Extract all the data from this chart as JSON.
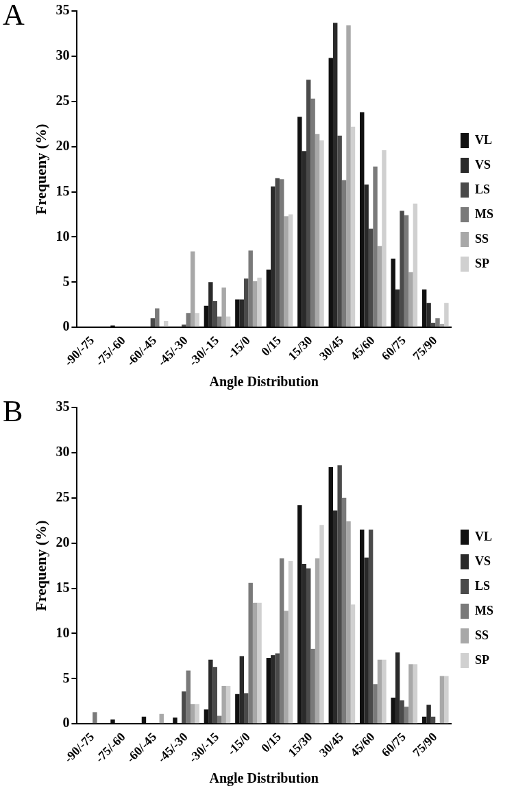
{
  "chart_data": [
    {
      "type": "bar",
      "annotations": [
        "A"
      ],
      "xlabel": "Angle Distribution",
      "ylabel": "Frequeny (%)",
      "categories": [
        "-90/-75",
        "-75/-60",
        "-60/-45",
        "-45/-30",
        "-30/-15",
        "-15/0",
        "0/15",
        "15/30",
        "30/45",
        "45/60",
        "60/75",
        "75/90"
      ],
      "series": [
        {
          "name": "VL",
          "color": "#111111",
          "values": [
            0,
            0.2,
            0,
            0,
            2.4,
            3.1,
            6.4,
            23.3,
            29.8,
            23.8,
            7.6,
            4.2
          ]
        },
        {
          "name": "VS",
          "color": "#2a2a2a",
          "values": [
            0,
            0,
            0,
            0,
            5.0,
            3.1,
            15.6,
            19.5,
            33.7,
            15.8,
            4.2,
            2.7
          ]
        },
        {
          "name": "LS",
          "color": "#4a4a4a",
          "values": [
            0,
            0,
            1.0,
            0.3,
            2.9,
            5.4,
            16.5,
            27.4,
            21.2,
            10.9,
            12.9,
            0.5
          ]
        },
        {
          "name": "MS",
          "color": "#7a7a7a",
          "values": [
            0,
            0,
            2.1,
            1.6,
            1.2,
            8.5,
            16.4,
            25.3,
            16.3,
            17.8,
            12.4,
            1.0
          ]
        },
        {
          "name": "SS",
          "color": "#a8a8a8",
          "values": [
            0,
            0,
            0,
            8.4,
            4.4,
            5.1,
            12.3,
            21.4,
            33.4,
            9.0,
            6.1,
            0.4
          ]
        },
        {
          "name": "SP",
          "color": "#d0d0d0",
          "values": [
            0,
            0,
            0.7,
            1.6,
            1.2,
            5.5,
            12.5,
            20.7,
            22.2,
            19.6,
            13.7,
            2.7
          ]
        }
      ],
      "ylim": [
        0,
        35
      ],
      "yticks": [
        0,
        5,
        10,
        15,
        20,
        25,
        30,
        35
      ],
      "grid": false,
      "legend": "right"
    },
    {
      "type": "bar",
      "annotations": [
        "B"
      ],
      "xlabel": "Angle Distribution",
      "ylabel": "Frequeny (%)",
      "categories": [
        "-90/-75",
        "-75/-60",
        "-60/-45",
        "-45/-30",
        "-30/-15",
        "-15/0",
        "0/15",
        "15/30",
        "30/45",
        "45/60",
        "60/75",
        "75/90"
      ],
      "series": [
        {
          "name": "VL",
          "color": "#111111",
          "values": [
            0,
            0.5,
            0.8,
            0.7,
            1.6,
            3.3,
            7.3,
            24.2,
            28.4,
            21.5,
            2.9,
            0.8
          ]
        },
        {
          "name": "VS",
          "color": "#2a2a2a",
          "values": [
            0,
            0,
            0,
            0,
            7.1,
            7.5,
            7.6,
            17.7,
            23.6,
            18.4,
            7.9,
            2.1
          ]
        },
        {
          "name": "LS",
          "color": "#4a4a4a",
          "values": [
            0,
            0,
            0,
            3.6,
            6.3,
            3.4,
            7.8,
            17.2,
            28.6,
            21.5,
            2.6,
            0.8
          ]
        },
        {
          "name": "MS",
          "color": "#7a7a7a",
          "values": [
            1.3,
            0,
            0,
            5.9,
            0.9,
            15.6,
            18.3,
            8.3,
            25.0,
            4.4,
            1.9,
            0
          ]
        },
        {
          "name": "SS",
          "color": "#a8a8a8",
          "values": [
            0,
            0,
            1.1,
            2.2,
            4.2,
            13.4,
            12.5,
            18.3,
            22.4,
            7.1,
            6.6,
            5.3
          ]
        },
        {
          "name": "SP",
          "color": "#d0d0d0",
          "values": [
            0,
            0,
            0,
            2.2,
            4.2,
            13.4,
            18.0,
            22.0,
            13.2,
            7.1,
            6.6,
            5.3
          ]
        }
      ],
      "ylim": [
        0,
        35
      ],
      "yticks": [
        0,
        5,
        10,
        15,
        20,
        25,
        30,
        35
      ],
      "grid": false,
      "legend": "right"
    }
  ]
}
